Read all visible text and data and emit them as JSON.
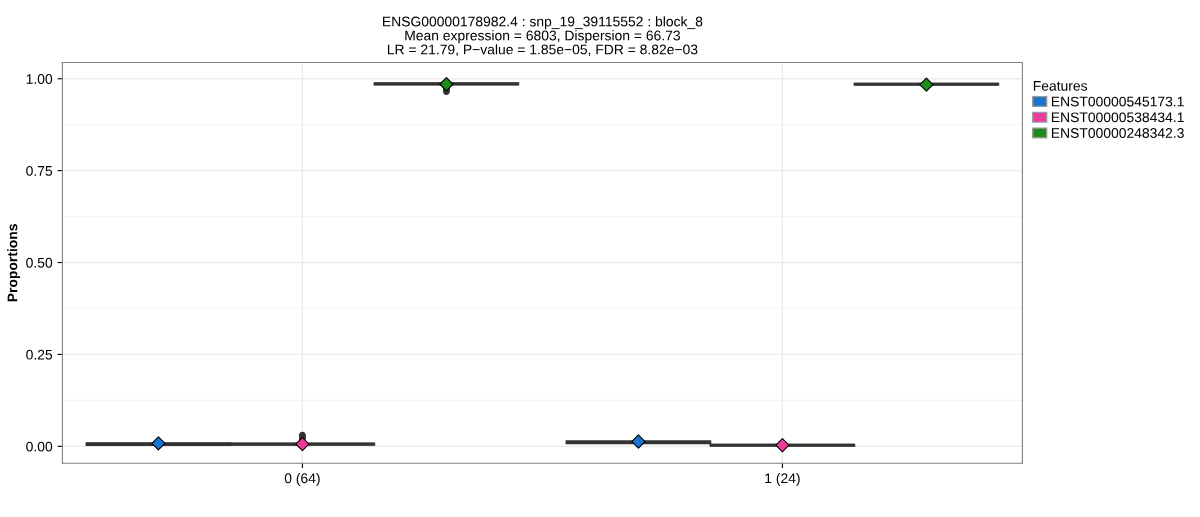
{
  "chart_data": {
    "type": "box",
    "title": "ENSG00000178982.4 : snp_19_39115552 : block_8\nMean expression = 6803, Dispersion = 66.73\nLR = 21.79, P−value = 1.85e−05, FDR = 8.82e−03",
    "ylabel": "Proportions",
    "legend_title": "Features",
    "legend": "right",
    "grid": true,
    "marker": "diamond",
    "categories": [
      "0 (64)",
      "1 (24)"
    ],
    "ylim": [
      -0.046,
      1.044
    ],
    "yticks": [
      {
        "value": 0,
        "label": "0.00"
      },
      {
        "value": 0.25,
        "label": "0.25"
      },
      {
        "value": 0.5,
        "label": "0.50"
      },
      {
        "value": 0.75,
        "label": "0.75"
      },
      {
        "value": 1,
        "label": "1.00"
      }
    ],
    "series": [
      {
        "name": "ENST00000545173.1",
        "color": "#1874cd",
        "boxes": [
          {
            "low": 0.001,
            "q1": 0.003,
            "median": 0.006,
            "q3": 0.009,
            "high": 0.012,
            "mean": 0.008
          },
          {
            "low": 0.005,
            "q1": 0.008,
            "median": 0.01,
            "q3": 0.014,
            "high": 0.016,
            "mean": 0.013
          }
        ]
      },
      {
        "name": "ENST00000538434.1",
        "color": "#ee3a9c",
        "boxes": [
          {
            "low": 0.002,
            "q1": 0.004,
            "median": 0.006,
            "q3": 0.008,
            "high": 0.012,
            "mean": 0.006,
            "outliers": [
              0.02,
              0.025,
              0.03
            ]
          },
          {
            "low": 0.0,
            "q1": 0.001,
            "median": 0.003,
            "q3": 0.005,
            "high": 0.007,
            "mean": 0.003
          }
        ]
      },
      {
        "name": "ENST00000248342.3",
        "color": "#1e8b1e",
        "boxes": [
          {
            "low": 0.978,
            "q1": 0.984,
            "median": 0.986,
            "q3": 0.988,
            "high": 0.992,
            "mean": 0.985,
            "outliers": [
              0.97,
              0.965
            ]
          },
          {
            "low": 0.98,
            "q1": 0.984,
            "median": 0.985,
            "q3": 0.987,
            "high": 0.99,
            "mean": 0.984
          }
        ]
      }
    ]
  }
}
